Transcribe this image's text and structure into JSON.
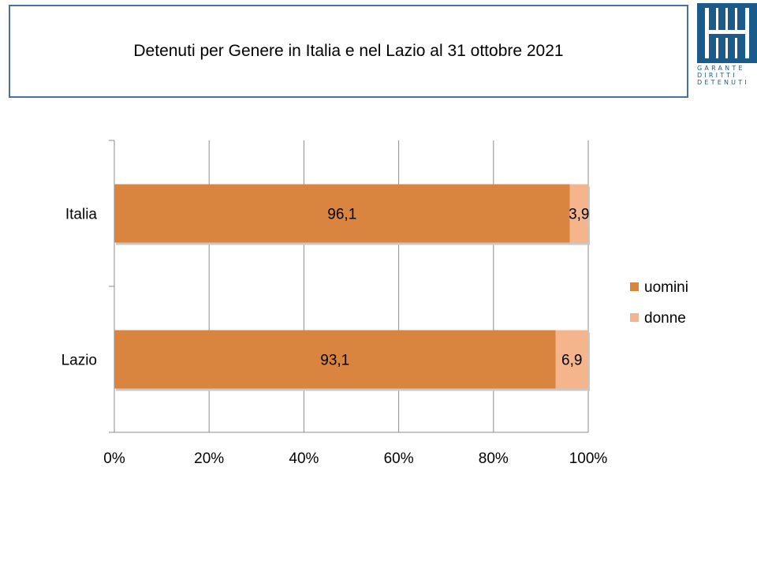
{
  "title": "Detenuti per Genere in Italia e nel Lazio al 31 ottobre 2021",
  "logo": {
    "lines": [
      "GARANTE",
      "DIRITTI",
      "DETENUTI"
    ],
    "color": "#1a5b8c"
  },
  "chart_data": {
    "type": "bar",
    "orientation": "horizontal",
    "stacked": "percent",
    "categories": [
      "Italia",
      "Lazio"
    ],
    "series": [
      {
        "name": "uomini",
        "values": [
          96.1,
          93.1
        ],
        "labels": [
          "96,1",
          "93,1"
        ],
        "color": "#d9843f"
      },
      {
        "name": "donne",
        "values": [
          3.9,
          6.9
        ],
        "labels": [
          "3,9",
          "6,9"
        ],
        "color": "#f4b48c"
      }
    ],
    "x_ticks": [
      "0%",
      "20%",
      "40%",
      "60%",
      "80%",
      "100%"
    ],
    "xlim": [
      0,
      100
    ],
    "grid": true,
    "legend_position": "right"
  }
}
